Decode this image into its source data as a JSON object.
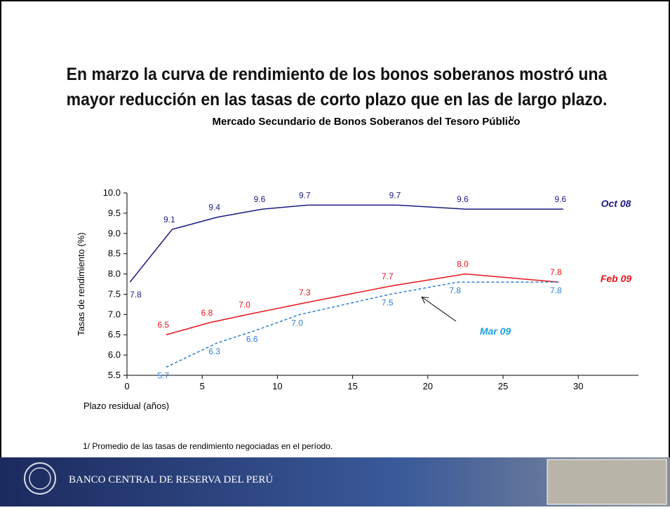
{
  "slide_title": "En marzo la curva de rendimiento de los bonos soberanos mostró una mayor reducción en las tasas de corto plazo que en las de largo plazo.",
  "chart_data": {
    "type": "line",
    "title": "Mercado Secundario de Bonos Soberanos del Tesoro Público",
    "title_note": "1/",
    "x_label": "Plazo residual (años)",
    "y_label": "Tasas de rendimiento (%)",
    "xlim": [
      0,
      34
    ],
    "xticks": [
      0,
      5,
      10,
      15,
      20,
      25,
      30
    ],
    "ylim": [
      5.5,
      10.0
    ],
    "yticks": [
      {
        "value": 10,
        "label": "10.0"
      },
      9.5,
      {
        "value": 9,
        "label": "9.0"
      },
      8.5,
      {
        "value": 8,
        "label": "8.0"
      },
      7.5,
      {
        "value": 7,
        "label": "7.0"
      },
      6.5,
      {
        "value": 6,
        "label": "6.0"
      },
      5.5
    ],
    "series": [
      {
        "name": "Oct 08",
        "color": "#1a1a80",
        "label_color": "#1a1a80",
        "dashed": false,
        "x": [
          0.2,
          3,
          6,
          9,
          12,
          18,
          22.5,
          29
        ],
        "values": [
          7.8,
          9.1,
          9.4,
          9.6,
          9.7,
          9.7,
          9.6,
          9.6
        ],
        "value_labels": [
          "7.8",
          "9.1",
          "9.4",
          "9.6",
          "9.7",
          "9.7",
          "9.6",
          "9.6"
        ]
      },
      {
        "name": "Feb 09",
        "color": "#e8141b",
        "label_color": "#e8141b",
        "dashed": false,
        "x": [
          2.6,
          5.5,
          8,
          12,
          17.5,
          22.5,
          28.7
        ],
        "values": [
          6.5,
          6.8,
          7.0,
          7.3,
          7.7,
          8.0,
          7.8
        ],
        "value_labels": [
          "6.5",
          "6.8",
          "7.0",
          "7.3",
          "7.7",
          "8.0",
          "7.8"
        ]
      },
      {
        "name": "Mar 09",
        "color": "#2a7fd0",
        "label_color": "#1ea0e0",
        "dashed": true,
        "x": [
          2.6,
          6,
          8.5,
          11.5,
          17.5,
          22,
          28.7
        ],
        "values": [
          5.7,
          6.3,
          6.6,
          7.0,
          7.5,
          7.8,
          7.8
        ],
        "value_labels": [
          "5.7",
          "6.3",
          "6.6",
          "7.0",
          "7.5",
          "7.8",
          "7.8"
        ]
      }
    ]
  },
  "footnote": "1/ Promedio de las tasas de rendimiento negociadas en el período.",
  "footer": {
    "bank_name": "BANCO CENTRAL DE RESERVA DEL PERÚ"
  }
}
